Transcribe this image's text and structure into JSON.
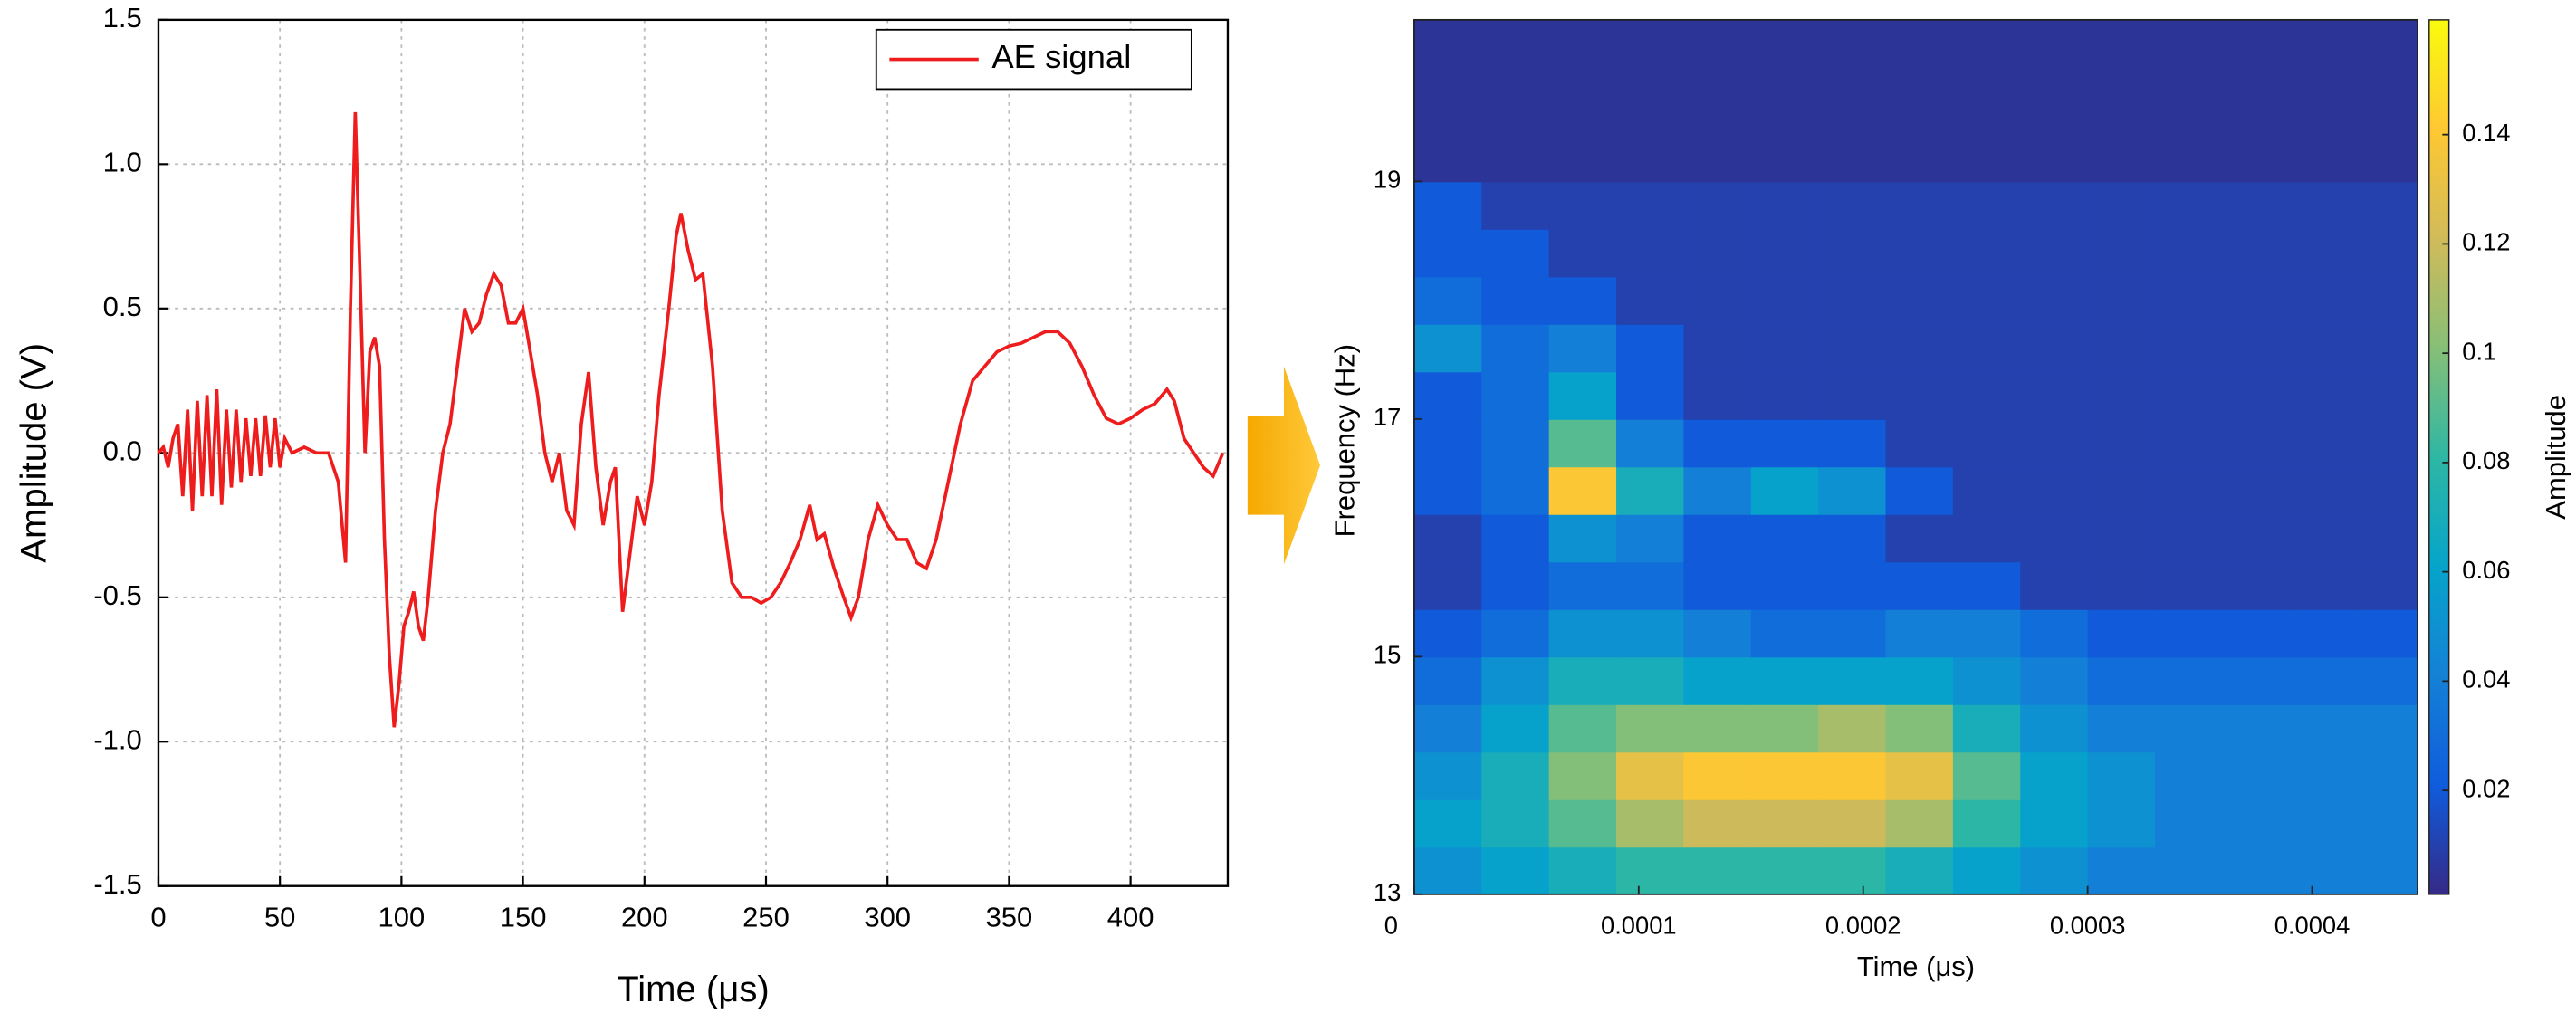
{
  "chart_data": [
    {
      "type": "line",
      "xlabel": "Time (μs)",
      "ylabel": "Amplitude (V)",
      "xlim": [
        0,
        440
      ],
      "xticks": [
        0,
        50,
        100,
        150,
        200,
        250,
        300,
        350,
        400
      ],
      "ylim": [
        -1.5,
        1.5
      ],
      "yticks": [
        -1.5,
        {
          "value": -1,
          "label": "-1.0"
        },
        -0.5,
        {
          "value": 0,
          "label": "0.0"
        },
        0.5,
        {
          "value": 1,
          "label": "1.0"
        },
        1.5
      ],
      "grid": true,
      "legend": "upper right",
      "x": [
        0,
        2,
        4,
        6,
        8,
        10,
        12,
        14,
        16,
        18,
        20,
        22,
        24,
        26,
        28,
        30,
        32,
        34,
        36,
        38,
        40,
        42,
        44,
        46,
        48,
        50,
        52,
        55,
        60,
        65,
        70,
        74,
        77,
        79,
        81,
        83,
        85,
        87,
        89,
        91,
        93,
        95,
        97,
        99,
        101,
        103,
        105,
        107,
        109,
        111,
        114,
        117,
        120,
        123,
        126,
        129,
        132,
        135,
        138,
        141,
        144,
        147,
        150,
        153,
        156,
        159,
        162,
        165,
        168,
        171,
        174,
        177,
        180,
        183,
        186,
        188,
        191,
        194,
        197,
        200,
        203,
        206,
        210,
        213,
        215,
        218,
        221,
        224,
        228,
        232,
        236,
        240,
        244,
        248,
        252,
        256,
        260,
        264,
        268,
        271,
        274,
        278,
        282,
        285,
        288,
        292,
        296,
        300,
        304,
        308,
        312,
        316,
        320,
        325,
        330,
        335,
        340,
        345,
        350,
        355,
        360,
        365,
        370,
        375,
        380,
        385,
        390,
        395,
        400,
        405,
        410,
        415,
        418,
        422,
        426,
        430,
        434,
        438
      ],
      "series": [
        {
          "name": "AE signal",
          "color": "#ee1c1c",
          "values": [
            0,
            0.02,
            -0.05,
            0.05,
            0.1,
            -0.15,
            0.15,
            -0.2,
            0.18,
            -0.15,
            0.2,
            -0.15,
            0.22,
            -0.18,
            0.15,
            -0.12,
            0.15,
            -0.1,
            0.12,
            -0.08,
            0.12,
            -0.08,
            0.13,
            -0.05,
            0.12,
            -0.05,
            0.05,
            0,
            0.02,
            0,
            0,
            -0.1,
            -0.38,
            0.5,
            1.18,
            0.6,
            0,
            0.35,
            0.4,
            0.3,
            -0.3,
            -0.7,
            -0.95,
            -0.8,
            -0.6,
            -0.55,
            -0.48,
            -0.6,
            -0.65,
            -0.5,
            -0.2,
            0,
            0.1,
            0.3,
            0.5,
            0.42,
            0.45,
            0.55,
            0.62,
            0.58,
            0.45,
            0.45,
            0.5,
            0.35,
            0.2,
            0,
            -0.1,
            0,
            -0.2,
            -0.25,
            0.1,
            0.28,
            -0.05,
            -0.25,
            -0.1,
            -0.05,
            -0.55,
            -0.35,
            -0.15,
            -0.25,
            -0.1,
            0.2,
            0.5,
            0.75,
            0.83,
            0.7,
            0.6,
            0.62,
            0.3,
            -0.2,
            -0.45,
            -0.5,
            -0.5,
            -0.52,
            -0.5,
            -0.45,
            -0.38,
            -0.3,
            -0.18,
            -0.3,
            -0.28,
            -0.4,
            -0.5,
            -0.57,
            -0.5,
            -0.3,
            -0.18,
            -0.25,
            -0.3,
            -0.3,
            -0.38,
            -0.4,
            -0.3,
            -0.1,
            0.1,
            0.25,
            0.3,
            0.35,
            0.37,
            0.38,
            0.4,
            0.42,
            0.42,
            0.38,
            0.3,
            0.2,
            0.12,
            0.1,
            0.12,
            0.15,
            0.17,
            0.22,
            0.18,
            0.05,
            0,
            -0.05,
            -0.08,
            0
          ]
        }
      ]
    },
    {
      "type": "heatmap",
      "xlabel": "Time (μs)",
      "ylabel": "Frequency (Hz)",
      "colorbar_label": "Amplitude",
      "xlim": [
        0,
        0.000447
      ],
      "xticks": [
        0,
        0.0001,
        0.0002,
        0.0003,
        0.0004
      ],
      "ylim": [
        13,
        20.36
      ],
      "yticks": [
        13,
        15,
        17,
        19
      ],
      "zlim": [
        0.001,
        0.161
      ],
      "zticks": [
        0.02,
        0.04,
        0.06,
        0.08,
        0.1,
        0.12,
        0.14
      ],
      "colorscale": [
        "#352a87",
        "#0f5cdd",
        "#1481d6",
        "#06a4ca",
        "#2eb7a4",
        "#87bf77",
        "#d1bb59",
        "#fec832",
        "#f9fb0e"
      ],
      "x": [
        1.5e-05,
        4.5e-05,
        7.5e-05,
        0.000105,
        0.000135,
        0.000165,
        0.000195,
        0.000225,
        0.000255,
        0.000285,
        0.000315,
        0.000345,
        0.000375,
        0.000405,
        0.000435
      ],
      "y": [
        13.2,
        13.6,
        14.0,
        14.4,
        14.8,
        15.2,
        15.6,
        16.0,
        16.4,
        16.8,
        17.2,
        17.6,
        18.0,
        18.4,
        18.8,
        19.2,
        19.6,
        20.0,
        20.4
      ],
      "z": [
        [
          0.05,
          0.06,
          0.07,
          0.08,
          0.08,
          0.08,
          0.08,
          0.07,
          0.06,
          0.05,
          0.04,
          0.04,
          0.04,
          0.04,
          0.04
        ],
        [
          0.06,
          0.07,
          0.09,
          0.11,
          0.12,
          0.12,
          0.12,
          0.11,
          0.08,
          0.06,
          0.05,
          0.04,
          0.04,
          0.04,
          0.04
        ],
        [
          0.05,
          0.07,
          0.1,
          0.13,
          0.14,
          0.14,
          0.14,
          0.13,
          0.09,
          0.06,
          0.05,
          0.04,
          0.04,
          0.04,
          0.04
        ],
        [
          0.04,
          0.06,
          0.09,
          0.1,
          0.1,
          0.1,
          0.11,
          0.1,
          0.07,
          0.05,
          0.04,
          0.04,
          0.04,
          0.04,
          0.04
        ],
        [
          0.03,
          0.05,
          0.07,
          0.07,
          0.06,
          0.06,
          0.06,
          0.06,
          0.05,
          0.04,
          0.03,
          0.03,
          0.03,
          0.03,
          0.03
        ],
        [
          0.02,
          0.03,
          0.05,
          0.05,
          0.04,
          0.03,
          0.03,
          0.04,
          0.04,
          0.03,
          0.02,
          0.02,
          0.02,
          0.02,
          0.02
        ],
        [
          0.01,
          0.02,
          0.03,
          0.03,
          0.02,
          0.02,
          0.02,
          0.02,
          0.02,
          0.01,
          0.01,
          0.01,
          0.01,
          0.01,
          0.01
        ],
        [
          0.01,
          0.02,
          0.05,
          0.04,
          0.02,
          0.02,
          0.02,
          0.01,
          0.01,
          0.01,
          0.01,
          0.01,
          0.01,
          0.01,
          0.01
        ],
        [
          0.02,
          0.03,
          0.14,
          0.07,
          0.04,
          0.06,
          0.05,
          0.02,
          0.01,
          0.01,
          0.01,
          0.01,
          0.01,
          0.01,
          0.01
        ],
        [
          0.02,
          0.03,
          0.09,
          0.04,
          0.02,
          0.02,
          0.02,
          0.01,
          0.01,
          0.01,
          0.01,
          0.01,
          0.01,
          0.01,
          0.01
        ],
        [
          0.02,
          0.03,
          0.06,
          0.02,
          0.01,
          0.01,
          0.01,
          0.01,
          0.01,
          0.01,
          0.01,
          0.01,
          0.01,
          0.01,
          0.01
        ],
        [
          0.05,
          0.03,
          0.04,
          0.02,
          0.01,
          0.01,
          0.01,
          0.01,
          0.01,
          0.01,
          0.01,
          0.01,
          0.01,
          0.01,
          0.01
        ],
        [
          0.03,
          0.02,
          0.02,
          0.01,
          0.01,
          0.01,
          0.01,
          0.01,
          0.01,
          0.01,
          0.01,
          0.01,
          0.01,
          0.01,
          0.01
        ],
        [
          0.02,
          0.02,
          0.01,
          0.01,
          0.01,
          0.01,
          0.01,
          0.01,
          0.01,
          0.01,
          0.01,
          0.01,
          0.01,
          0.01,
          0.01
        ],
        [
          0.02,
          0.01,
          0.01,
          0.01,
          0.01,
          0.01,
          0.01,
          0.01,
          0.01,
          0.01,
          0.01,
          0.01,
          0.01,
          0.01,
          0.01
        ],
        [
          0.005,
          0.005,
          0.005,
          0.005,
          0.005,
          0.005,
          0.005,
          0.005,
          0.005,
          0.005,
          0.005,
          0.005,
          0.005,
          0.005,
          0.005
        ],
        [
          0.005,
          0.005,
          0.005,
          0.005,
          0.005,
          0.005,
          0.005,
          0.005,
          0.005,
          0.005,
          0.005,
          0.005,
          0.005,
          0.005,
          0.005
        ],
        [
          0.005,
          0.005,
          0.005,
          0.005,
          0.005,
          0.005,
          0.005,
          0.005,
          0.005,
          0.005,
          0.005,
          0.005,
          0.005,
          0.005,
          0.005
        ],
        [
          0.005,
          0.005,
          0.005,
          0.005,
          0.005,
          0.005,
          0.005,
          0.005,
          0.005,
          0.005,
          0.005,
          0.005,
          0.005,
          0.005,
          0.005
        ]
      ]
    }
  ]
}
